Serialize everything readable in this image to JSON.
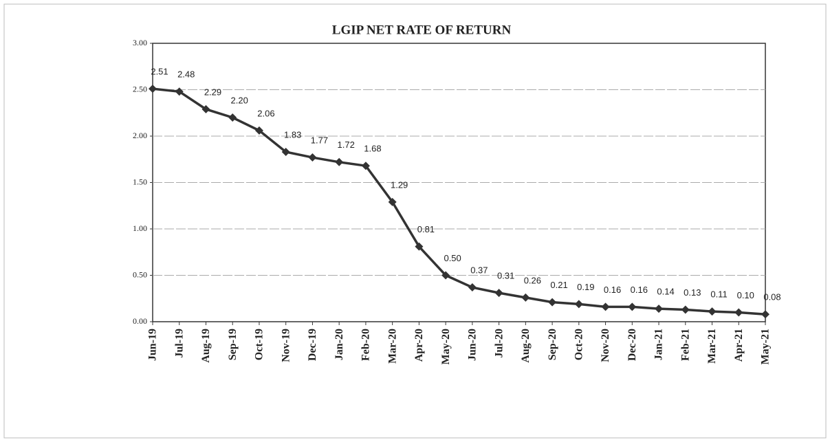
{
  "chart_data": {
    "type": "line",
    "title": "LGIP NET RATE OF RETURN",
    "categories": [
      "Jun-19",
      "Jul-19",
      "Aug-19",
      "Sep-19",
      "Oct-19",
      "Nov-19",
      "Dec-19",
      "Jan-20",
      "Feb-20",
      "Mar-20",
      "Apr-20",
      "May-20",
      "Jun-20",
      "Jul-20",
      "Aug-20",
      "Sep-20",
      "Oct-20",
      "Nov-20",
      "Dec-20",
      "Jan-21",
      "Feb-21",
      "Mar-21",
      "Apr-21",
      "May-21"
    ],
    "series": [
      {
        "name": "LGIP Net Rate of Return",
        "color": "#333333",
        "values": [
          2.51,
          2.48,
          2.29,
          2.2,
          2.06,
          1.83,
          1.77,
          1.72,
          1.68,
          1.29,
          0.81,
          0.5,
          0.37,
          0.31,
          0.26,
          0.21,
          0.19,
          0.16,
          0.16,
          0.14,
          0.13,
          0.11,
          0.1,
          0.08
        ],
        "value_labels": [
          "2.51",
          "2.48",
          "2.29",
          "2.20",
          "2.06",
          "1.83",
          "1.77",
          "1.72",
          "1.68",
          "1.29",
          "0.81",
          "0.50",
          "0.37",
          "0.31",
          "0.26",
          "0.21",
          "0.19",
          "0.16",
          "0.16",
          "0.14",
          "0.13",
          "0.11",
          "0.10",
          "0.08"
        ]
      }
    ],
    "ylim": [
      0,
      3
    ],
    "yticks": [
      {
        "value": 0,
        "label": "0.00"
      },
      {
        "value": 0.5,
        "label": "0.50"
      },
      {
        "value": 1,
        "label": "1.00"
      },
      {
        "value": 1.5,
        "label": "1.50"
      },
      {
        "value": 2,
        "label": "2.00"
      },
      {
        "value": 2.5,
        "label": "2.50"
      },
      {
        "value": 3,
        "label": "3.00"
      }
    ],
    "grid": true
  }
}
